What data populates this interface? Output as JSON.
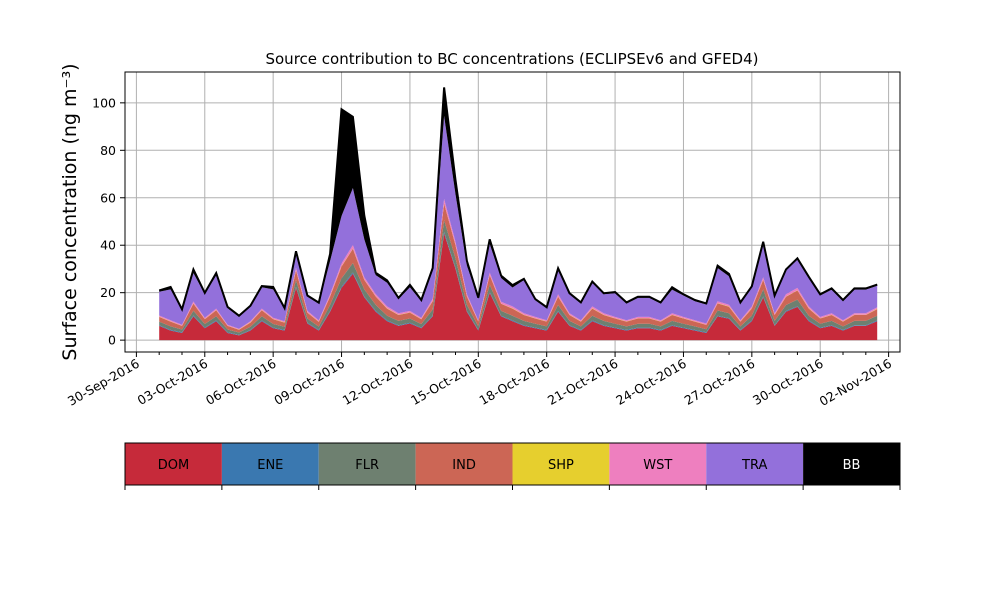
{
  "chart_data": {
    "type": "area",
    "stacked": true,
    "title": "Source contribution to BC concentrations (ECLIPSEv6 and GFED4)",
    "ylabel": "Surface concentration (ng m⁻³)",
    "ylim": [
      -5,
      113
    ],
    "grid": true,
    "x_start": "2016-10-01",
    "x_tick_labels": [
      "30-Sep-2016",
      "03-Oct-2016",
      "06-Oct-2016",
      "09-Oct-2016",
      "12-Oct-2016",
      "15-Oct-2016",
      "18-Oct-2016",
      "21-Oct-2016",
      "24-Oct-2016",
      "27-Oct-2016",
      "30-Oct-2016",
      "02-Nov-2016"
    ],
    "x_ticks": [
      "2016-09-30",
      "2016-10-03",
      "2016-10-06",
      "2016-10-09",
      "2016-10-12",
      "2016-10-15",
      "2016-10-18",
      "2016-10-21",
      "2016-10-24",
      "2016-10-27",
      "2016-10-30",
      "2016-11-02"
    ],
    "x_minor_ticks": [
      "2016-10-01",
      "2016-10-02",
      "2016-10-04",
      "2016-10-05",
      "2016-10-07",
      "2016-10-08",
      "2016-10-10",
      "2016-10-11",
      "2016-10-13",
      "2016-10-14",
      "2016-10-16",
      "2016-10-17",
      "2016-10-19",
      "2016-10-20",
      "2016-10-22",
      "2016-10-23",
      "2016-10-25",
      "2016-10-26",
      "2016-10-28",
      "2016-10-29",
      "2016-10-31",
      "2016-11-01"
    ],
    "y_ticks": [
      0,
      20,
      40,
      60,
      80,
      100
    ],
    "dates": [
      "2016-10-01",
      "2016-10-01.5",
      "2016-10-02",
      "2016-10-02.5",
      "2016-10-03",
      "2016-10-03.5",
      "2016-10-04",
      "2016-10-04.5",
      "2016-10-05",
      "2016-10-05.5",
      "2016-10-06",
      "2016-10-06.5",
      "2016-10-07",
      "2016-10-07.5",
      "2016-10-08",
      "2016-10-08.5",
      "2016-10-09",
      "2016-10-09.5",
      "2016-10-10",
      "2016-10-10.5",
      "2016-10-11",
      "2016-10-11.5",
      "2016-10-12",
      "2016-10-12.5",
      "2016-10-13",
      "2016-10-13.5",
      "2016-10-14",
      "2016-10-14.5",
      "2016-10-15",
      "2016-10-15.5",
      "2016-10-16",
      "2016-10-16.5",
      "2016-10-17",
      "2016-10-17.5",
      "2016-10-18",
      "2016-10-18.5",
      "2016-10-19",
      "2016-10-19.5",
      "2016-10-20",
      "2016-10-20.5",
      "2016-10-21",
      "2016-10-21.5",
      "2016-10-22",
      "2016-10-22.5",
      "2016-10-23",
      "2016-10-23.5",
      "2016-10-24",
      "2016-10-24.5",
      "2016-10-25",
      "2016-10-25.5",
      "2016-10-26",
      "2016-10-26.5",
      "2016-10-27",
      "2016-10-27.5",
      "2016-10-28",
      "2016-10-28.5",
      "2016-10-29",
      "2016-10-29.5",
      "2016-10-30",
      "2016-10-30.5",
      "2016-10-31",
      "2016-10-31.5",
      "2016-11-01",
      "2016-11-01.5"
    ],
    "series": [
      {
        "name": "DOM",
        "color": "#c62a3a",
        "values": [
          6,
          4,
          3,
          10,
          5,
          8,
          3,
          2,
          4,
          8,
          5,
          4,
          22,
          7,
          4,
          12,
          22,
          28,
          18,
          12,
          8,
          6,
          7,
          5,
          10,
          45,
          30,
          12,
          4,
          20,
          10,
          8,
          6,
          5,
          4,
          12,
          6,
          4,
          8,
          6,
          5,
          4,
          5,
          5,
          4,
          6,
          5,
          4,
          3,
          10,
          9,
          4,
          8,
          18,
          6,
          12,
          14,
          8,
          5,
          6,
          4,
          6,
          6,
          8
        ]
      },
      {
        "name": "ENE",
        "color": "#3a78b0",
        "values": [
          0.3,
          0.3,
          0.3,
          0.4,
          0.3,
          0.3,
          0.3,
          0.2,
          0.3,
          0.3,
          0.3,
          0.3,
          0.4,
          0.3,
          0.3,
          0.4,
          0.5,
          0.5,
          0.4,
          0.4,
          0.3,
          0.3,
          0.3,
          0.3,
          0.4,
          0.6,
          0.5,
          0.4,
          0.3,
          0.4,
          0.3,
          0.3,
          0.3,
          0.3,
          0.3,
          0.3,
          0.3,
          0.3,
          0.3,
          0.3,
          0.3,
          0.3,
          0.3,
          0.3,
          0.3,
          0.3,
          0.3,
          0.3,
          0.3,
          0.3,
          0.3,
          0.3,
          0.3,
          0.4,
          0.3,
          0.3,
          0.3,
          0.3,
          0.3,
          0.3,
          0.3,
          0.3,
          0.3,
          0.3
        ]
      },
      {
        "name": "FLR",
        "color": "#6e8070",
        "values": [
          1.5,
          1.5,
          1.2,
          2,
          1.5,
          1.8,
          1.2,
          1,
          1.3,
          1.8,
          1.5,
          1.3,
          3,
          1.8,
          1.4,
          2.5,
          3.5,
          4,
          3,
          2.5,
          2,
          1.8,
          1.8,
          1.5,
          2.5,
          5,
          4,
          2.5,
          1.5,
          3,
          2,
          2,
          1.8,
          1.6,
          1.5,
          2.5,
          1.8,
          1.5,
          2,
          1.8,
          1.6,
          1.5,
          1.6,
          1.6,
          1.5,
          1.8,
          1.6,
          1.5,
          1.3,
          2.2,
          2,
          1.5,
          2,
          3,
          1.8,
          2.5,
          2.8,
          2,
          1.6,
          1.8,
          1.5,
          1.8,
          1.8,
          2
        ]
      },
      {
        "name": "IND",
        "color": "#cc6655",
        "values": [
          2,
          2,
          1.5,
          3,
          2,
          2.5,
          1.5,
          1.2,
          1.8,
          2.5,
          2,
          1.8,
          4,
          2.5,
          2,
          3.5,
          5,
          6,
          4,
          3.5,
          3,
          2.5,
          2.5,
          2,
          3.5,
          7,
          5.5,
          3.5,
          2,
          4,
          3,
          3,
          2.5,
          2.2,
          2,
          3.5,
          2.5,
          2,
          3,
          2.5,
          2.2,
          2,
          2.2,
          2.2,
          2,
          2.5,
          2.2,
          2,
          1.8,
          3,
          2.8,
          2,
          3,
          4,
          2.5,
          3.5,
          3.8,
          3,
          2.2,
          2.5,
          2,
          2.5,
          2.5,
          2.8
        ]
      },
      {
        "name": "SHP",
        "color": "#e6cf2e",
        "values": [
          0.1,
          0.1,
          0.1,
          0.1,
          0.1,
          0.1,
          0.1,
          0.1,
          0.1,
          0.1,
          0.1,
          0.1,
          0.1,
          0.1,
          0.1,
          0.1,
          0.1,
          0.1,
          0.1,
          0.1,
          0.1,
          0.1,
          0.1,
          0.1,
          0.1,
          0.1,
          0.1,
          0.1,
          0.1,
          0.1,
          0.1,
          0.1,
          0.1,
          0.1,
          0.1,
          0.1,
          0.1,
          0.1,
          0.1,
          0.1,
          0.1,
          0.1,
          0.1,
          0.1,
          0.1,
          0.1,
          0.1,
          0.1,
          0.1,
          0.1,
          0.1,
          0.1,
          0.1,
          0.1,
          0.1,
          0.1,
          0.1,
          0.1,
          0.1,
          0.1,
          0.1,
          0.1,
          0.1,
          0.1
        ]
      },
      {
        "name": "WST",
        "color": "#ee7fbf",
        "values": [
          0.5,
          0.5,
          0.4,
          0.8,
          0.5,
          0.6,
          0.4,
          0.3,
          0.5,
          0.6,
          0.5,
          0.5,
          1,
          0.6,
          0.5,
          0.9,
          1.2,
          1.5,
          1,
          0.9,
          0.8,
          0.6,
          0.6,
          0.5,
          0.9,
          1.8,
          1.4,
          0.9,
          0.5,
          1,
          0.8,
          0.8,
          0.6,
          0.6,
          0.5,
          0.9,
          0.6,
          0.5,
          0.8,
          0.6,
          0.6,
          0.5,
          0.6,
          0.6,
          0.5,
          0.6,
          0.6,
          0.5,
          0.5,
          0.8,
          0.7,
          0.5,
          0.8,
          1,
          0.6,
          0.9,
          1,
          0.8,
          0.6,
          0.6,
          0.5,
          0.6,
          0.6,
          0.7
        ]
      },
      {
        "name": "TRA",
        "color": "#9370db",
        "values": [
          10,
          13,
          6,
          12,
          10,
          14,
          7,
          5,
          6,
          9,
          12,
          5,
          6,
          6,
          7,
          14,
          20,
          24,
          16,
          8,
          10,
          6,
          10,
          7,
          12,
          35,
          20,
          12,
          9,
          12,
          10,
          8,
          14,
          7,
          5,
          10,
          8,
          7,
          10,
          8,
          10,
          7,
          8,
          8,
          7,
          10,
          9,
          8,
          8,
          14,
          12,
          7,
          8,
          14,
          7,
          10,
          12,
          12,
          9,
          10,
          8,
          10,
          10,
          9
        ]
      },
      {
        "name": "BB",
        "color": "#000000",
        "values": [
          0.5,
          1,
          0.5,
          1.5,
          0.5,
          1,
          0.5,
          0.5,
          0.5,
          0.5,
          1,
          0.5,
          1,
          0.5,
          0.5,
          3,
          45,
          30,
          10,
          1,
          1,
          0.5,
          1,
          0.5,
          1,
          12,
          6,
          2,
          0.5,
          2,
          1,
          1,
          0.5,
          0.5,
          0.5,
          1,
          0.5,
          0.5,
          0.5,
          0.5,
          0.5,
          0.5,
          0.5,
          0.5,
          0.5,
          1,
          0.5,
          0.5,
          0.5,
          1,
          1,
          0.5,
          0.5,
          1,
          0.5,
          0.5,
          0.5,
          0.5,
          0.5,
          0.5,
          0.5,
          0.5,
          0.5,
          0.5
        ]
      }
    ],
    "legend": {
      "placement": "bottom",
      "entries": [
        {
          "name": "DOM",
          "color": "#c62a3a",
          "text_color": "#000000"
        },
        {
          "name": "ENE",
          "color": "#3a78b0",
          "text_color": "#000000"
        },
        {
          "name": "FLR",
          "color": "#6e8070",
          "text_color": "#000000"
        },
        {
          "name": "IND",
          "color": "#cc6655",
          "text_color": "#000000"
        },
        {
          "name": "SHP",
          "color": "#e6cf2e",
          "text_color": "#000000"
        },
        {
          "name": "WST",
          "color": "#ee7fbf",
          "text_color": "#000000"
        },
        {
          "name": "TRA",
          "color": "#9370db",
          "text_color": "#000000"
        },
        {
          "name": "BB",
          "color": "#000000",
          "text_color": "#ffffff"
        }
      ]
    }
  }
}
